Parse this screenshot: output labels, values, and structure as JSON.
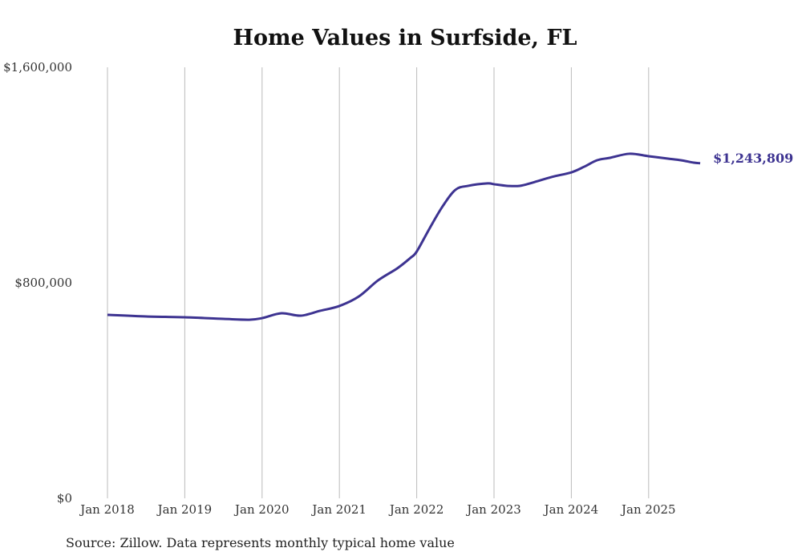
{
  "chart_data": {
    "type": "line",
    "title": "Home Values in Surfside, FL",
    "xlabel": "",
    "ylabel": "",
    "ylim": [
      0,
      1600000
    ],
    "y_ticks": [
      {
        "value": 0,
        "label": "$0"
      },
      {
        "value": 800000,
        "label": "$800,000"
      },
      {
        "value": 1600000,
        "label": "$1,600,000"
      }
    ],
    "x_ticks": [
      {
        "value": 2018.0,
        "label": "Jan 2018"
      },
      {
        "value": 2019.0,
        "label": "Jan 2019"
      },
      {
        "value": 2020.0,
        "label": "Jan 2020"
      },
      {
        "value": 2021.0,
        "label": "Jan 2021"
      },
      {
        "value": 2022.0,
        "label": "Jan 2022"
      },
      {
        "value": 2023.0,
        "label": "Jan 2023"
      },
      {
        "value": 2024.0,
        "label": "Jan 2024"
      },
      {
        "value": 2025.0,
        "label": "Jan 2025"
      }
    ],
    "xlim": [
      2018.0,
      2025.67
    ],
    "grid": "vertical",
    "series": [
      {
        "name": "Typical home value",
        "color": "#3d3391",
        "end_label": "$1,243,809",
        "x": [
          "2018-01",
          "2018-07",
          "2019-01",
          "2019-07",
          "2019-11",
          "2020-01",
          "2020-04",
          "2020-07",
          "2020-10",
          "2021-01",
          "2021-04",
          "2021-07",
          "2021-10",
          "2021-12",
          "2022-01",
          "2022-03",
          "2022-05",
          "2022-07",
          "2022-09",
          "2022-12",
          "2023-01",
          "2023-03",
          "2023-05",
          "2023-07",
          "2023-10",
          "2024-01",
          "2024-03",
          "2024-05",
          "2024-07",
          "2024-10",
          "2025-01",
          "2025-04",
          "2025-06",
          "2025-08",
          "2025-09"
        ],
        "values": [
          681000,
          675000,
          672000,
          666000,
          663000,
          669000,
          687000,
          678000,
          696000,
          714000,
          749000,
          809000,
          854000,
          892000,
          916000,
          1002000,
          1083000,
          1145000,
          1160000,
          1169000,
          1166000,
          1160000,
          1160000,
          1172000,
          1193000,
          1210000,
          1231000,
          1255000,
          1264000,
          1279000,
          1270000,
          1261000,
          1255000,
          1246000,
          1243809
        ]
      }
    ],
    "source": "Source: Zillow. Data represents monthly typical home value"
  }
}
